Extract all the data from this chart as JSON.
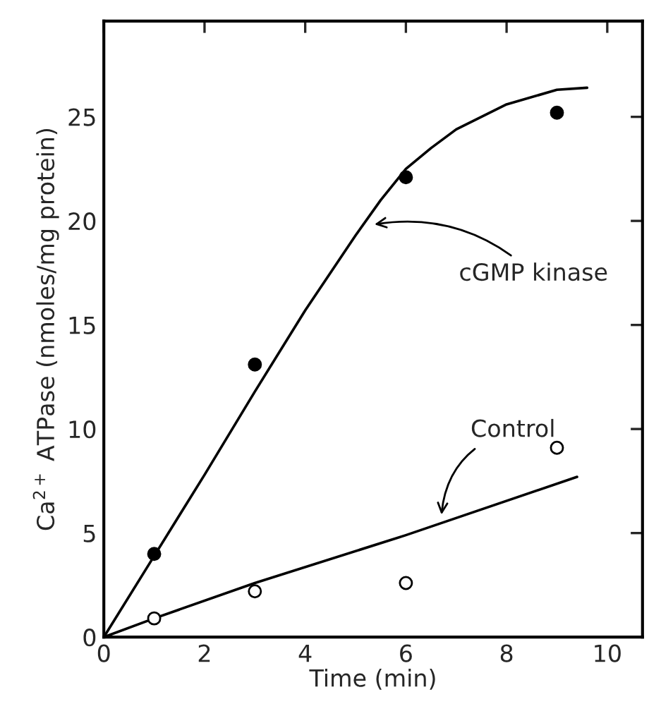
{
  "chart_data": {
    "type": "scatter",
    "xlabel": "Time (min)",
    "ylabel": "Ca$^{2+}$ ATPase (nmoles/mg protein)",
    "xlim": [
      0,
      10.7
    ],
    "ylim": [
      0,
      29.6
    ],
    "xticks": [
      0,
      2,
      4,
      6,
      8,
      10
    ],
    "yticks": [
      0,
      5,
      10,
      15,
      20,
      25
    ],
    "grid": false,
    "series": [
      {
        "marker": "circle",
        "color": "#000000",
        "x": [
          1,
          3,
          6,
          9
        ],
        "values": [
          4.0,
          13.1,
          22.1,
          25.2
        ]
      },
      {
        "marker": "circle",
        "color": "#ffffff",
        "x": [
          1,
          3,
          6,
          9
        ],
        "values": [
          0.9,
          2.2,
          2.6,
          9.1
        ]
      },
      {
        "type": "line",
        "marker": "none",
        "color": "#000000",
        "x": [
          0,
          1,
          2,
          3,
          4,
          5,
          5.5,
          6,
          6.5,
          7,
          8,
          9,
          9.6
        ],
        "values": [
          0,
          3.9,
          7.8,
          11.8,
          15.7,
          19.3,
          21.0,
          22.5,
          23.5,
          24.4,
          25.6,
          26.3,
          26.4
        ]
      },
      {
        "type": "line",
        "marker": "none",
        "color": "#000000",
        "x": [
          0,
          1,
          3,
          6,
          9.4
        ],
        "values": [
          0,
          0.9,
          2.6,
          4.9,
          7.7
        ]
      }
    ],
    "annotations": [
      {
        "text": "cGMP kinase",
        "x": 5.3,
        "y": 19.8
      },
      {
        "text": "Control",
        "x": 6.7,
        "y": 5.7
      }
    ]
  }
}
